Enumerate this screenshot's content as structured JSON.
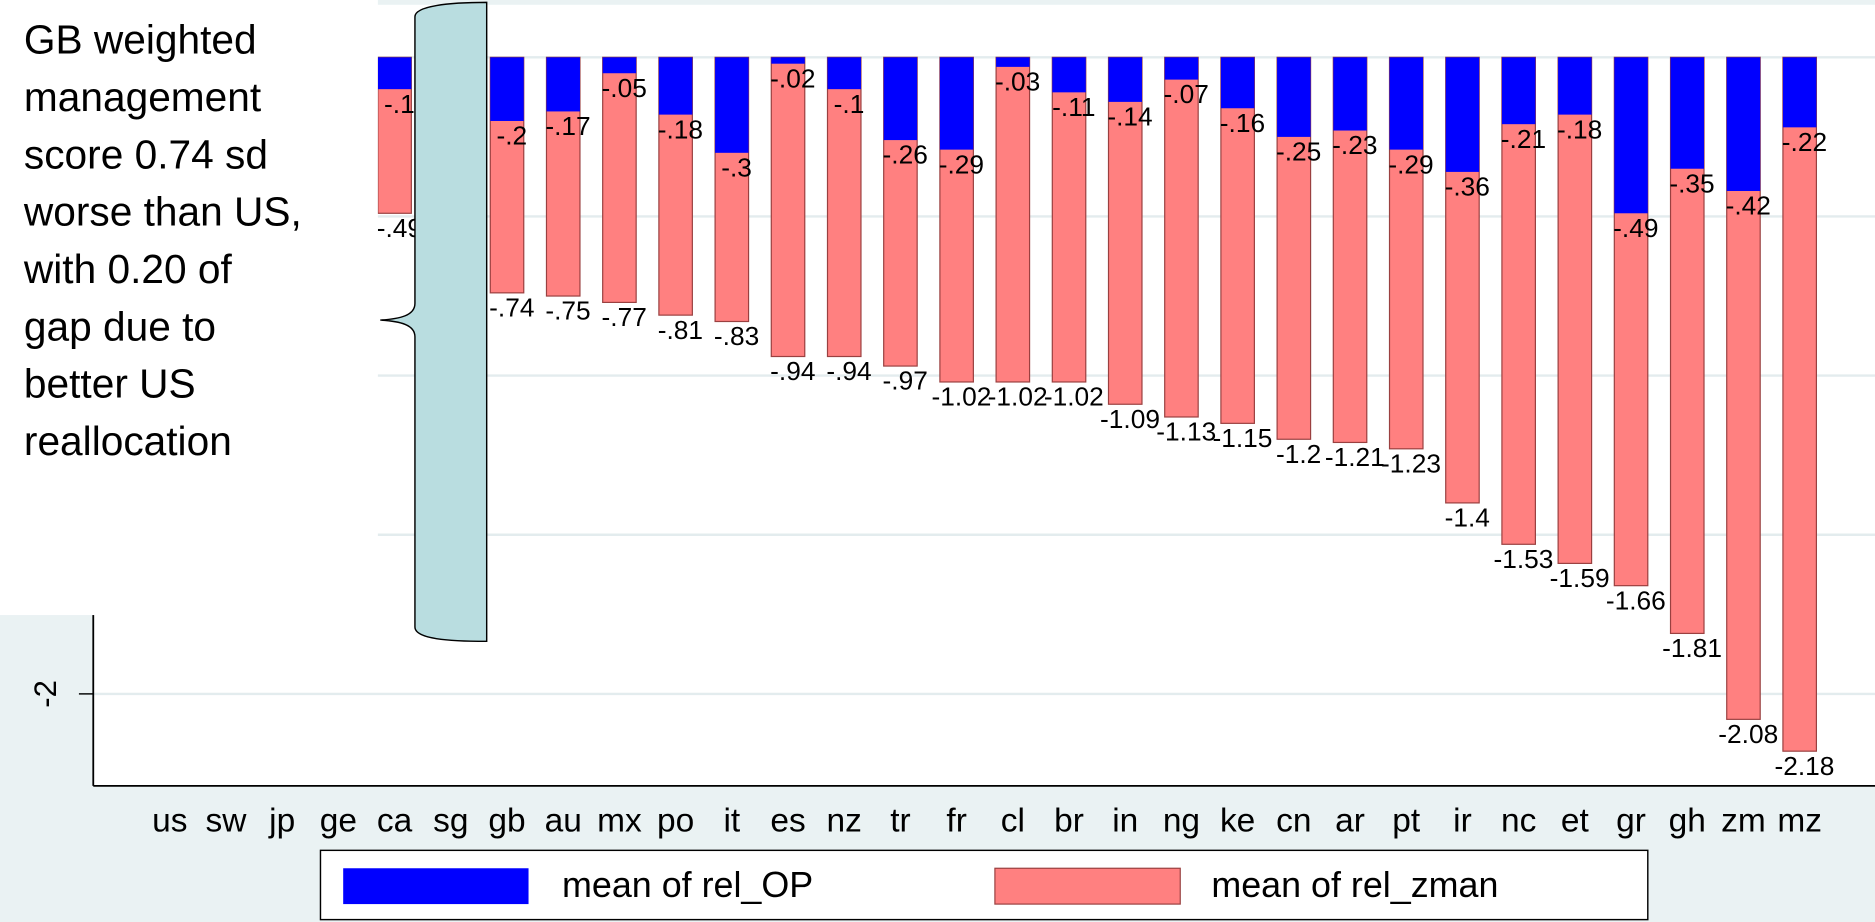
{
  "chart_data": {
    "type": "bar",
    "annotation_lines": [
      "GB weighted",
      "management",
      "score 0.74 sd",
      "worse than US,",
      "with 0.20 of",
      "gap due to",
      "better US",
      "reallocation"
    ],
    "categories": [
      "us",
      "sw",
      "jp",
      "ge",
      "ca",
      "sg",
      "gb",
      "au",
      "mx",
      "po",
      "it",
      "es",
      "nz",
      "tr",
      "fr",
      "cl",
      "br",
      "in",
      "ng",
      "ke",
      "cn",
      "ar",
      "pt",
      "ir",
      "nc",
      "et",
      "gr",
      "gh",
      "zm",
      "mz"
    ],
    "series": [
      {
        "name": "mean of rel_OP",
        "color": "#0000ff",
        "values": [
          null,
          null,
          null,
          null,
          -0.1,
          null,
          -0.2,
          -0.17,
          -0.05,
          -0.18,
          -0.3,
          -0.02,
          -0.1,
          -0.26,
          -0.29,
          -0.03,
          -0.11,
          -0.14,
          -0.07,
          -0.16,
          -0.25,
          -0.23,
          -0.29,
          -0.36,
          -0.21,
          -0.18,
          -0.49,
          -0.35,
          -0.42,
          -0.22
        ],
        "value_labels": [
          null,
          null,
          null,
          null,
          "-.1",
          null,
          "-.2",
          "-.17",
          "-.05",
          "-.18",
          "-.3",
          "-.02",
          "-.1",
          "-.26",
          "-.29",
          "-.03",
          "-.11",
          "-.14",
          "-.07",
          "-.16",
          "-.25",
          "-.23",
          "-.29",
          "-.36",
          "-.21",
          "-.18",
          "-.49",
          "-.35",
          "-.42",
          "-.22"
        ]
      },
      {
        "name": "mean of rel_zman",
        "color": "#ff8080",
        "values": [
          null,
          null,
          null,
          null,
          -0.49,
          null,
          -0.74,
          -0.75,
          -0.77,
          -0.81,
          -0.83,
          -0.94,
          -0.94,
          -0.97,
          -1.02,
          -1.02,
          -1.02,
          -1.09,
          -1.13,
          -1.15,
          -1.2,
          -1.21,
          -1.23,
          -1.4,
          -1.53,
          -1.59,
          -1.66,
          -1.81,
          -2.08,
          -2.18
        ],
        "value_labels": [
          null,
          null,
          null,
          null,
          "-.49",
          null,
          "-.74",
          "-.75",
          "-.77",
          "-.81",
          "-.83",
          "-.94",
          "-.94",
          "-.97",
          "-1.02",
          "-1.02",
          "-1.02",
          "-1.09",
          "-1.13",
          "-1.15",
          "-1.2",
          "-1.21",
          "-1.23",
          "-1.4",
          "-1.53",
          "-1.59",
          "-1.66",
          "-1.81",
          "-2.08",
          "-2.18"
        ]
      }
    ],
    "ylim": [
      -2.29,
      0.16
    ],
    "yticks": [
      {
        "value": -2,
        "label": "-2"
      }
    ],
    "ygrid": [
      0,
      -0.5,
      -1,
      -1.5,
      -2
    ],
    "grid": true
  }
}
